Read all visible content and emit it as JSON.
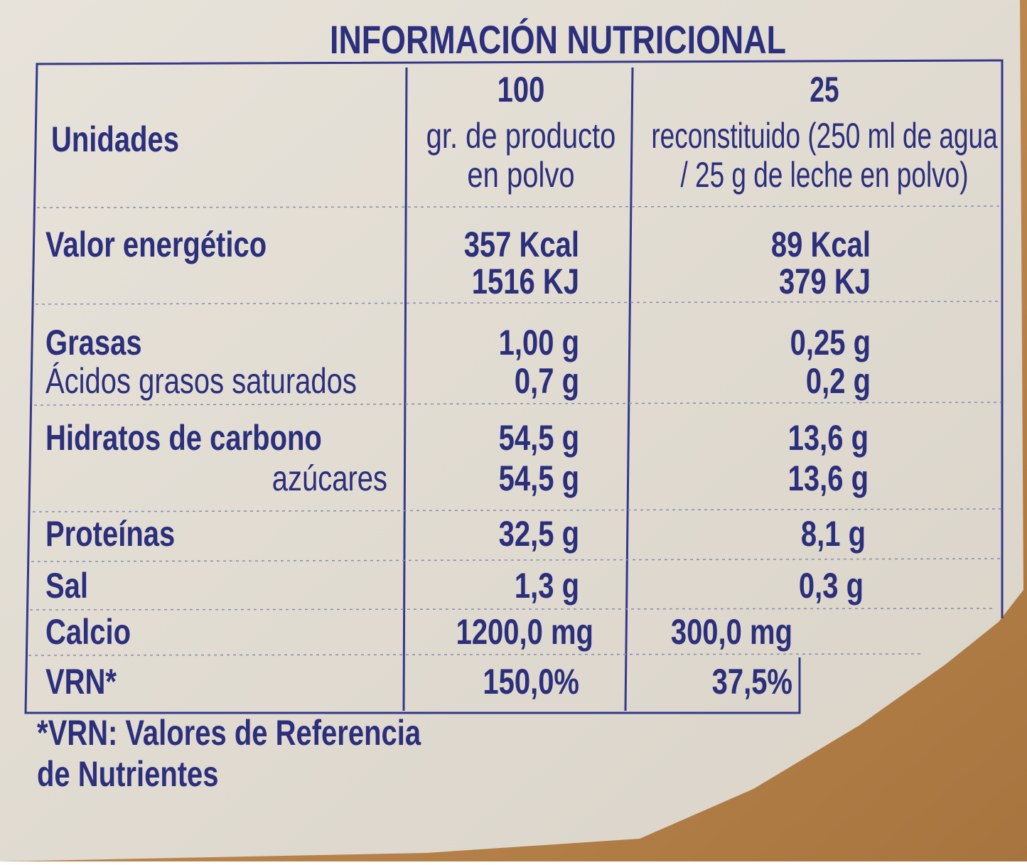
{
  "title": "INFORMACIÓN NUTRICIONAL",
  "header": {
    "label": "Unidades",
    "col1": [
      "100",
      "gr. de producto",
      "en polvo"
    ],
    "col2": [
      "25",
      "reconstituido (250 ml de agua",
      "/ 25 g de leche en polvo)"
    ]
  },
  "rows": [
    {
      "label": [
        "Valor energético"
      ],
      "col1": [
        "357 Kcal",
        "1516 KJ"
      ],
      "col2": [
        "89 Kcal",
        "379 KJ"
      ]
    },
    {
      "label": [
        "Grasas",
        "Ácidos grasos saturados"
      ],
      "col1": [
        "1,00 g",
        "0,7 g"
      ],
      "col2": [
        "0,25 g",
        "0,2 g"
      ]
    },
    {
      "label": [
        "Hidratos de carbono",
        "azúcares"
      ],
      "col1": [
        "54,5 g",
        "54,5 g"
      ],
      "col2": [
        "13,6 g",
        "13,6 g"
      ]
    },
    {
      "label": [
        "Proteínas"
      ],
      "col1": [
        "32,5 g"
      ],
      "col2": [
        "8,1 g"
      ]
    },
    {
      "label": [
        "Sal"
      ],
      "col1": [
        "1,3 g"
      ],
      "col2": [
        "0,3 g"
      ]
    },
    {
      "label": [
        "Calcio"
      ],
      "col1": [
        "1200,0 mg"
      ],
      "col2": [
        "300,0 mg"
      ]
    },
    {
      "label": [
        "VRN*"
      ],
      "col1": [
        "150,0%"
      ],
      "col2": [
        "37,5%"
      ]
    }
  ],
  "footnote": [
    "*VRN: Valores de Referencia",
    "de Nutrientes"
  ]
}
